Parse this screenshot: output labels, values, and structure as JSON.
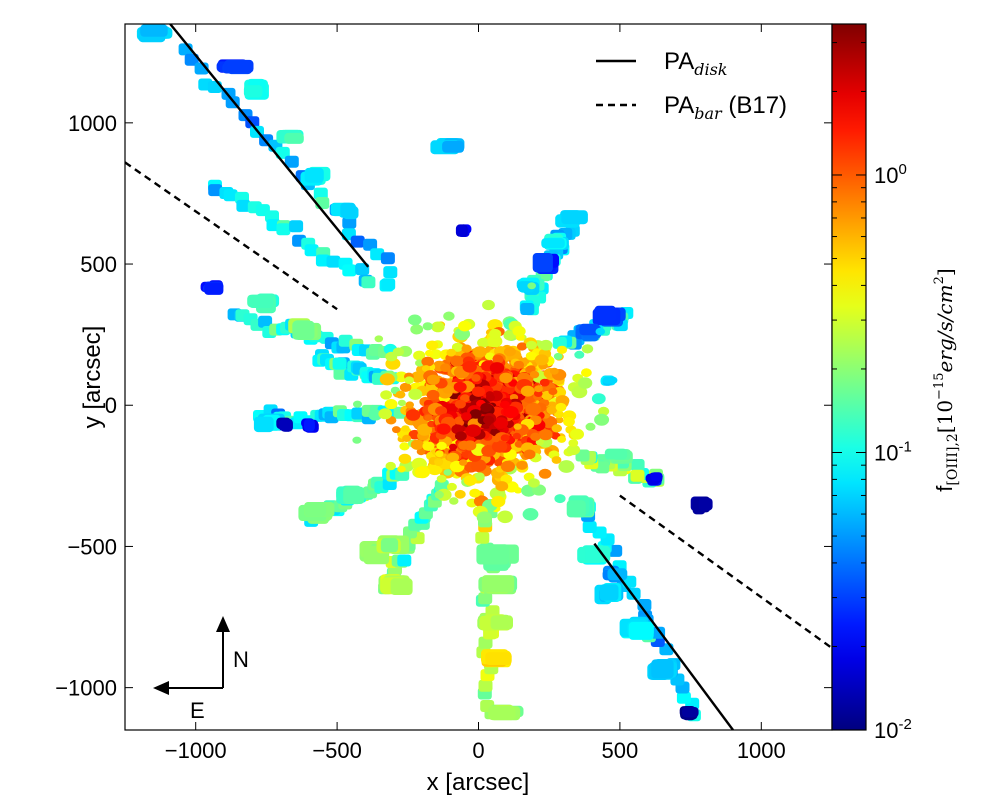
{
  "chart_data": {
    "type": "scatter",
    "title": "",
    "xlabel": "x [arcsec]",
    "ylabel": "y [arcsec]",
    "xlim": [
      -1250,
      1250
    ],
    "ylim": [
      -1150,
      1350
    ],
    "xticks": [
      "−1000",
      "−500",
      "0",
      "500",
      "1000"
    ],
    "xtick_values": [
      -1000,
      -500,
      0,
      500,
      1000
    ],
    "yticks": [
      "−1000",
      "−500",
      "0",
      "500",
      "1000"
    ],
    "ytick_values": [
      -1000,
      -500,
      0,
      500,
      1000
    ],
    "grid": false,
    "legend_position": "top-right",
    "legend": [
      {
        "label": "PA",
        "subscript": "disk",
        "suffix": "",
        "style": "solid"
      },
      {
        "label": "PA",
        "subscript": "bar",
        "suffix": " (B17)",
        "style": "dashed"
      }
    ],
    "lines": [
      {
        "name": "PA_disk",
        "style": "solid",
        "segments": [
          [
            [
              -1090,
              1350
            ],
            [
              -390,
              490
            ]
          ],
          [
            [
              410,
              -490
            ],
            [
              900,
              -1150
            ]
          ]
        ]
      },
      {
        "name": "PA_bar (B17)",
        "style": "dashed",
        "segments": [
          [
            [
              -1250,
              860
            ],
            [
              -500,
              340
            ]
          ],
          [
            [
              500,
              -320
            ],
            [
              1250,
              -860
            ]
          ]
        ]
      }
    ],
    "colorbar": {
      "scale": "log",
      "colormap": "jet",
      "range": [
        0.01,
        3.5
      ],
      "ticks": [
        {
          "base": "10",
          "exp": "-2",
          "value": 0.01
        },
        {
          "base": "10",
          "exp": "-1",
          "value": 0.1
        },
        {
          "base": "10",
          "exp": "0",
          "value": 1
        }
      ],
      "label_main": "f",
      "label_sub": "[OIII],2",
      "label_rest": "[10",
      "label_exp": "−15",
      "label_units": "erg/s/cm",
      "label_units_exp": "2",
      "label_close": "]"
    },
    "compass": {
      "north": "N",
      "east": "E"
    },
    "spokes": [
      {
        "from": [
          -1050,
          1250
        ],
        "to": [
          -300,
          470
        ],
        "value": 0.07
      },
      {
        "from": [
          -940,
          780
        ],
        "to": [
          -330,
          420
        ],
        "value": 0.08
      },
      {
        "from": [
          -870,
          320
        ],
        "to": [
          -330,
          180
        ],
        "value": 0.1
      },
      {
        "from": [
          -770,
          -50
        ],
        "to": [
          -300,
          -20
        ],
        "value": 0.09
      },
      {
        "from": [
          -580,
          -400
        ],
        "to": [
          -280,
          -240
        ],
        "value": 0.12
      },
      {
        "from": [
          -330,
          -640
        ],
        "to": [
          -140,
          -300
        ],
        "value": 0.15
      },
      {
        "from": [
          40,
          -1080
        ],
        "to": [
          30,
          -350
        ],
        "value": 0.25
      },
      {
        "from": [
          760,
          -1080
        ],
        "to": [
          380,
          -360
        ],
        "value": 0.07
      },
      {
        "from": [
          650,
          -260
        ],
        "to": [
          360,
          -180
        ],
        "value": 0.2
      },
      {
        "from": [
          330,
          660
        ],
        "to": [
          170,
          330
        ],
        "value": 0.1
      },
      {
        "from": [
          520,
          320
        ],
        "to": [
          300,
          220
        ],
        "value": 0.09
      },
      {
        "from": [
          -560,
          160
        ],
        "to": [
          -310,
          90
        ],
        "value": 0.12
      }
    ],
    "blobs": [
      {
        "x": -1150,
        "y": 1320,
        "w": 110,
        "h": 60,
        "value": 0.07
      },
      {
        "x": -860,
        "y": 1200,
        "w": 120,
        "h": 60,
        "value": 0.03
      },
      {
        "x": -780,
        "y": 1120,
        "w": 100,
        "h": 70,
        "value": 0.09
      },
      {
        "x": -670,
        "y": 950,
        "w": 100,
        "h": 60,
        "value": 0.12
      },
      {
        "x": -580,
        "y": 810,
        "w": 90,
        "h": 60,
        "value": 0.09
      },
      {
        "x": -470,
        "y": 690,
        "w": 90,
        "h": 60,
        "value": 0.07
      },
      {
        "x": -940,
        "y": 420,
        "w": 80,
        "h": 50,
        "value": 0.025
      },
      {
        "x": -760,
        "y": 360,
        "w": 110,
        "h": 70,
        "value": 0.15
      },
      {
        "x": -620,
        "y": 270,
        "w": 100,
        "h": 80,
        "value": 0.2
      },
      {
        "x": -740,
        "y": -60,
        "w": 100,
        "h": 70,
        "value": 0.08
      },
      {
        "x": -680,
        "y": -70,
        "w": 60,
        "h": 50,
        "value": 0.012
      },
      {
        "x": -600,
        "y": -70,
        "w": 60,
        "h": 50,
        "value": 0.02
      },
      {
        "x": -570,
        "y": -380,
        "w": 120,
        "h": 80,
        "value": 0.2
      },
      {
        "x": -450,
        "y": -320,
        "w": 100,
        "h": 70,
        "value": 0.15
      },
      {
        "x": -370,
        "y": -520,
        "w": 110,
        "h": 80,
        "value": 0.2
      },
      {
        "x": -290,
        "y": -640,
        "w": 120,
        "h": 80,
        "value": 0.25
      },
      {
        "x": -300,
        "y": -500,
        "w": 100,
        "h": 80,
        "value": 0.22
      },
      {
        "x": -110,
        "y": 920,
        "w": 120,
        "h": 60,
        "value": 0.07
      },
      {
        "x": -50,
        "y": 620,
        "w": 60,
        "h": 50,
        "value": 0.02
      },
      {
        "x": 320,
        "y": 660,
        "w": 110,
        "h": 60,
        "value": 0.08
      },
      {
        "x": 270,
        "y": 580,
        "w": 110,
        "h": 60,
        "value": 0.09
      },
      {
        "x": 230,
        "y": 500,
        "w": 90,
        "h": 80,
        "value": 0.025
      },
      {
        "x": 180,
        "y": 420,
        "w": 90,
        "h": 60,
        "value": 0.08
      },
      {
        "x": 470,
        "y": 320,
        "w": 120,
        "h": 80,
        "value": 0.03
      },
      {
        "x": 380,
        "y": 260,
        "w": 100,
        "h": 60,
        "value": 0.04
      },
      {
        "x": 460,
        "y": 90,
        "w": 60,
        "h": 40,
        "value": 0.08
      },
      {
        "x": 500,
        "y": -180,
        "w": 90,
        "h": 60,
        "value": 0.15
      },
      {
        "x": 620,
        "y": -260,
        "w": 60,
        "h": 50,
        "value": 0.02
      },
      {
        "x": 790,
        "y": -350,
        "w": 70,
        "h": 70,
        "value": 0.011
      },
      {
        "x": 350,
        "y": -360,
        "w": 100,
        "h": 80,
        "value": 0.15
      },
      {
        "x": 410,
        "y": -530,
        "w": 100,
        "h": 80,
        "value": 0.12
      },
      {
        "x": 480,
        "y": -600,
        "w": 90,
        "h": 60,
        "value": 0.05
      },
      {
        "x": 460,
        "y": -670,
        "w": 100,
        "h": 80,
        "value": 0.07
      },
      {
        "x": 560,
        "y": -790,
        "w": 110,
        "h": 80,
        "value": 0.08
      },
      {
        "x": 650,
        "y": -940,
        "w": 110,
        "h": 80,
        "value": 0.07
      },
      {
        "x": 740,
        "y": -1090,
        "w": 70,
        "h": 60,
        "value": 0.011
      },
      {
        "x": 60,
        "y": -540,
        "w": 130,
        "h": 90,
        "value": 0.15
      },
      {
        "x": 60,
        "y": -640,
        "w": 130,
        "h": 80,
        "value": 0.2
      },
      {
        "x": 70,
        "y": -770,
        "w": 130,
        "h": 70,
        "value": 0.25
      },
      {
        "x": 70,
        "y": -900,
        "w": 120,
        "h": 70,
        "value": 0.45
      },
      {
        "x": 90,
        "y": -1090,
        "w": 120,
        "h": 60,
        "value": 0.22
      }
    ],
    "core": {
      "x": 20,
      "y": -20,
      "radius": 480,
      "count": 1900,
      "center_value": 3.0,
      "edge_value": 0.12
    }
  }
}
